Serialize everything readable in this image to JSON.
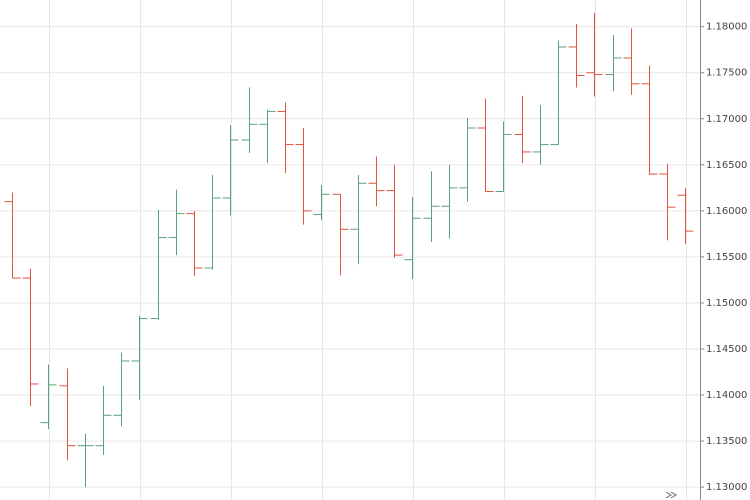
{
  "chart_data": {
    "type": "ohlc",
    "open": [
      1.161,
      1.1527,
      1.137,
      1.141,
      1.1345,
      1.1345,
      1.1378,
      1.1437,
      1.1483,
      1.1571,
      1.1597,
      1.1538,
      1.1614,
      1.1677,
      1.1694,
      1.1708,
      1.1672,
      1.1596,
      1.1618,
      1.158,
      1.163,
      1.1622,
      1.1547,
      1.1592,
      1.1605,
      1.1625,
      1.169,
      1.1621,
      1.1683,
      1.1664,
      1.1672,
      1.1778,
      1.175,
      1.1748,
      1.1766,
      1.1738,
      1.164,
      1.1617
    ],
    "high": [
      1.162,
      1.1537,
      1.1433,
      1.1429,
      1.1358,
      1.141,
      1.1446,
      1.1486,
      1.1601,
      1.1623,
      1.16,
      1.1639,
      1.1693,
      1.1734,
      1.171,
      1.1718,
      1.169,
      1.1628,
      1.1618,
      1.1639,
      1.1659,
      1.165,
      1.1615,
      1.1643,
      1.165,
      1.1701,
      1.1722,
      1.1697,
      1.1725,
      1.1715,
      1.1785,
      1.1803,
      1.1815,
      1.1791,
      1.1798,
      1.1758,
      1.1651,
      1.1625
    ],
    "low": [
      1.1527,
      1.1388,
      1.1363,
      1.1329,
      1.13,
      1.1335,
      1.1366,
      1.1395,
      1.1482,
      1.1552,
      1.1529,
      1.1536,
      1.1595,
      1.1663,
      1.1652,
      1.1641,
      1.1585,
      1.159,
      1.153,
      1.1542,
      1.1605,
      1.1549,
      1.1526,
      1.1566,
      1.157,
      1.161,
      1.1621,
      1.1621,
      1.1652,
      1.165,
      1.1672,
      1.1734,
      1.1724,
      1.173,
      1.1726,
      1.1639,
      1.1568,
      1.1564
    ],
    "close": [
      1.1527,
      1.1412,
      1.1411,
      1.1345,
      1.1345,
      1.1378,
      1.1437,
      1.1483,
      1.1571,
      1.1597,
      1.1538,
      1.1614,
      1.1677,
      1.1694,
      1.1708,
      1.1672,
      1.16,
      1.1618,
      1.158,
      1.163,
      1.1622,
      1.1552,
      1.1592,
      1.1605,
      1.1625,
      1.169,
      1.1621,
      1.1683,
      1.1664,
      1.1672,
      1.1778,
      1.1747,
      1.1748,
      1.1766,
      1.1738,
      1.164,
      1.1604,
      1.1578
    ],
    "up_color": "#5c9f7f",
    "down_color": "#e0533c",
    "ylim": [
      1.1286,
      1.1829
    ],
    "yticks": [
      {
        "value": 1.13,
        "label": "1.13000"
      },
      {
        "value": 1.135,
        "label": "1.13500"
      },
      {
        "value": 1.14,
        "label": "1.14000"
      },
      {
        "value": 1.145,
        "label": "1.14500"
      },
      {
        "value": 1.15,
        "label": "1.15000"
      },
      {
        "value": 1.155,
        "label": "1.15500"
      },
      {
        "value": 1.16,
        "label": "1.16000"
      },
      {
        "value": 1.165,
        "label": "1.16500"
      },
      {
        "value": 1.17,
        "label": "1.17000"
      },
      {
        "value": 1.175,
        "label": "1.17500"
      },
      {
        "value": 1.18,
        "label": "1.18000"
      }
    ],
    "grid": true
  }
}
